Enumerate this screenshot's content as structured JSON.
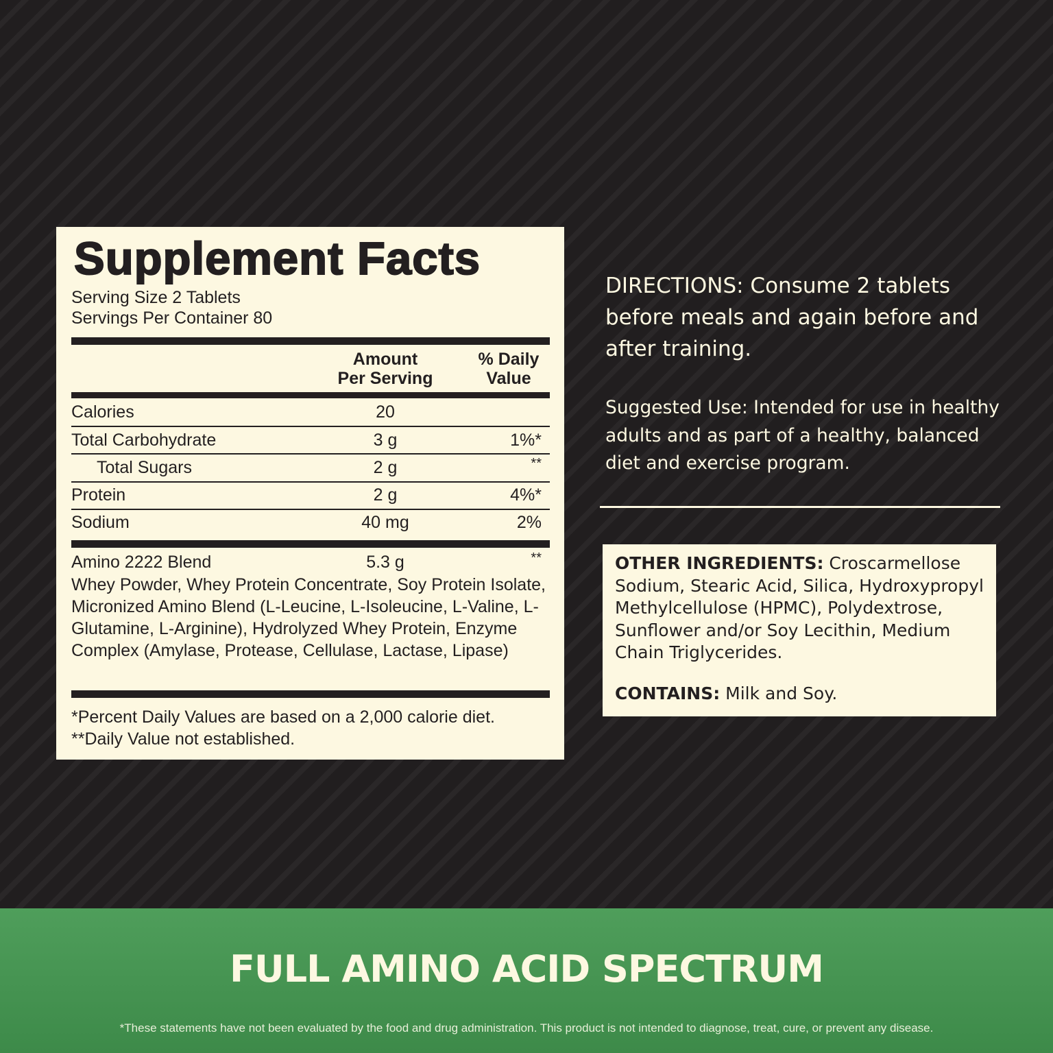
{
  "facts": {
    "title": "Supplement Facts",
    "serving_size": "Serving Size 2 Tablets",
    "servings_per_container": "Servings Per Container 80",
    "header_amount_1": "Amount",
    "header_amount_2": "Per Serving",
    "header_dv_1": "% Daily",
    "header_dv_2": "Value",
    "rows": [
      {
        "name": "Calories",
        "amount": "20",
        "dv": ""
      },
      {
        "name": "Total Carbohydrate",
        "amount": "3 g",
        "dv": "1%*"
      },
      {
        "name": "Total Sugars",
        "amount": "2 g",
        "dv": "**"
      },
      {
        "name": "Protein",
        "amount": "2 g",
        "dv": "4%*"
      },
      {
        "name": "Sodium",
        "amount": "40 mg",
        "dv": "2%"
      }
    ],
    "blend": {
      "name": "Amino 2222 Blend",
      "amount": "5.3 g",
      "dv": "**",
      "contents": "Whey Powder, Whey Protein Concentrate, Soy Protein Isolate, Micronized Amino Blend (L-Leucine, L-Isoleucine, L-Valine, L-Glutamine, L-Arginine), Hydrolyzed Whey Protein, Enzyme Complex (Amylase, Protease, Cellulase, Lactase, Lipase)"
    },
    "footnote_1": "*Percent Daily Values are based on a 2,000 calorie diet.",
    "footnote_2": "**Daily Value not established."
  },
  "directions": "DIRECTIONS: Consume 2 tablets before meals and again before and after training.",
  "suggested_use": "Suggested Use: Intended for use in healthy adults and as part of a healthy, balanced diet and exercise program.",
  "other_ingredients": {
    "label": "OTHER INGREDIENTS:",
    "text": " Croscarmellose Sodium, Stearic Acid, Silica, Hydroxypropyl Methylcellulose (HPMC), Polydextrose, Sunflower and/or Soy Lecithin, Medium Chain Triglycerides.",
    "contains_label": "CONTAINS:",
    "contains_text": " Milk and Soy."
  },
  "banner": {
    "slogan": "FULL AMINO ACID SPECTRUM",
    "disclaimer": "*These statements have not been evaluated by the food and drug administration. This product is not intended to diagnose, treat, cure, or prevent any disease."
  },
  "colors": {
    "background": "#221f20",
    "panel": "#fdf8e1",
    "green": "#4a9a57"
  }
}
